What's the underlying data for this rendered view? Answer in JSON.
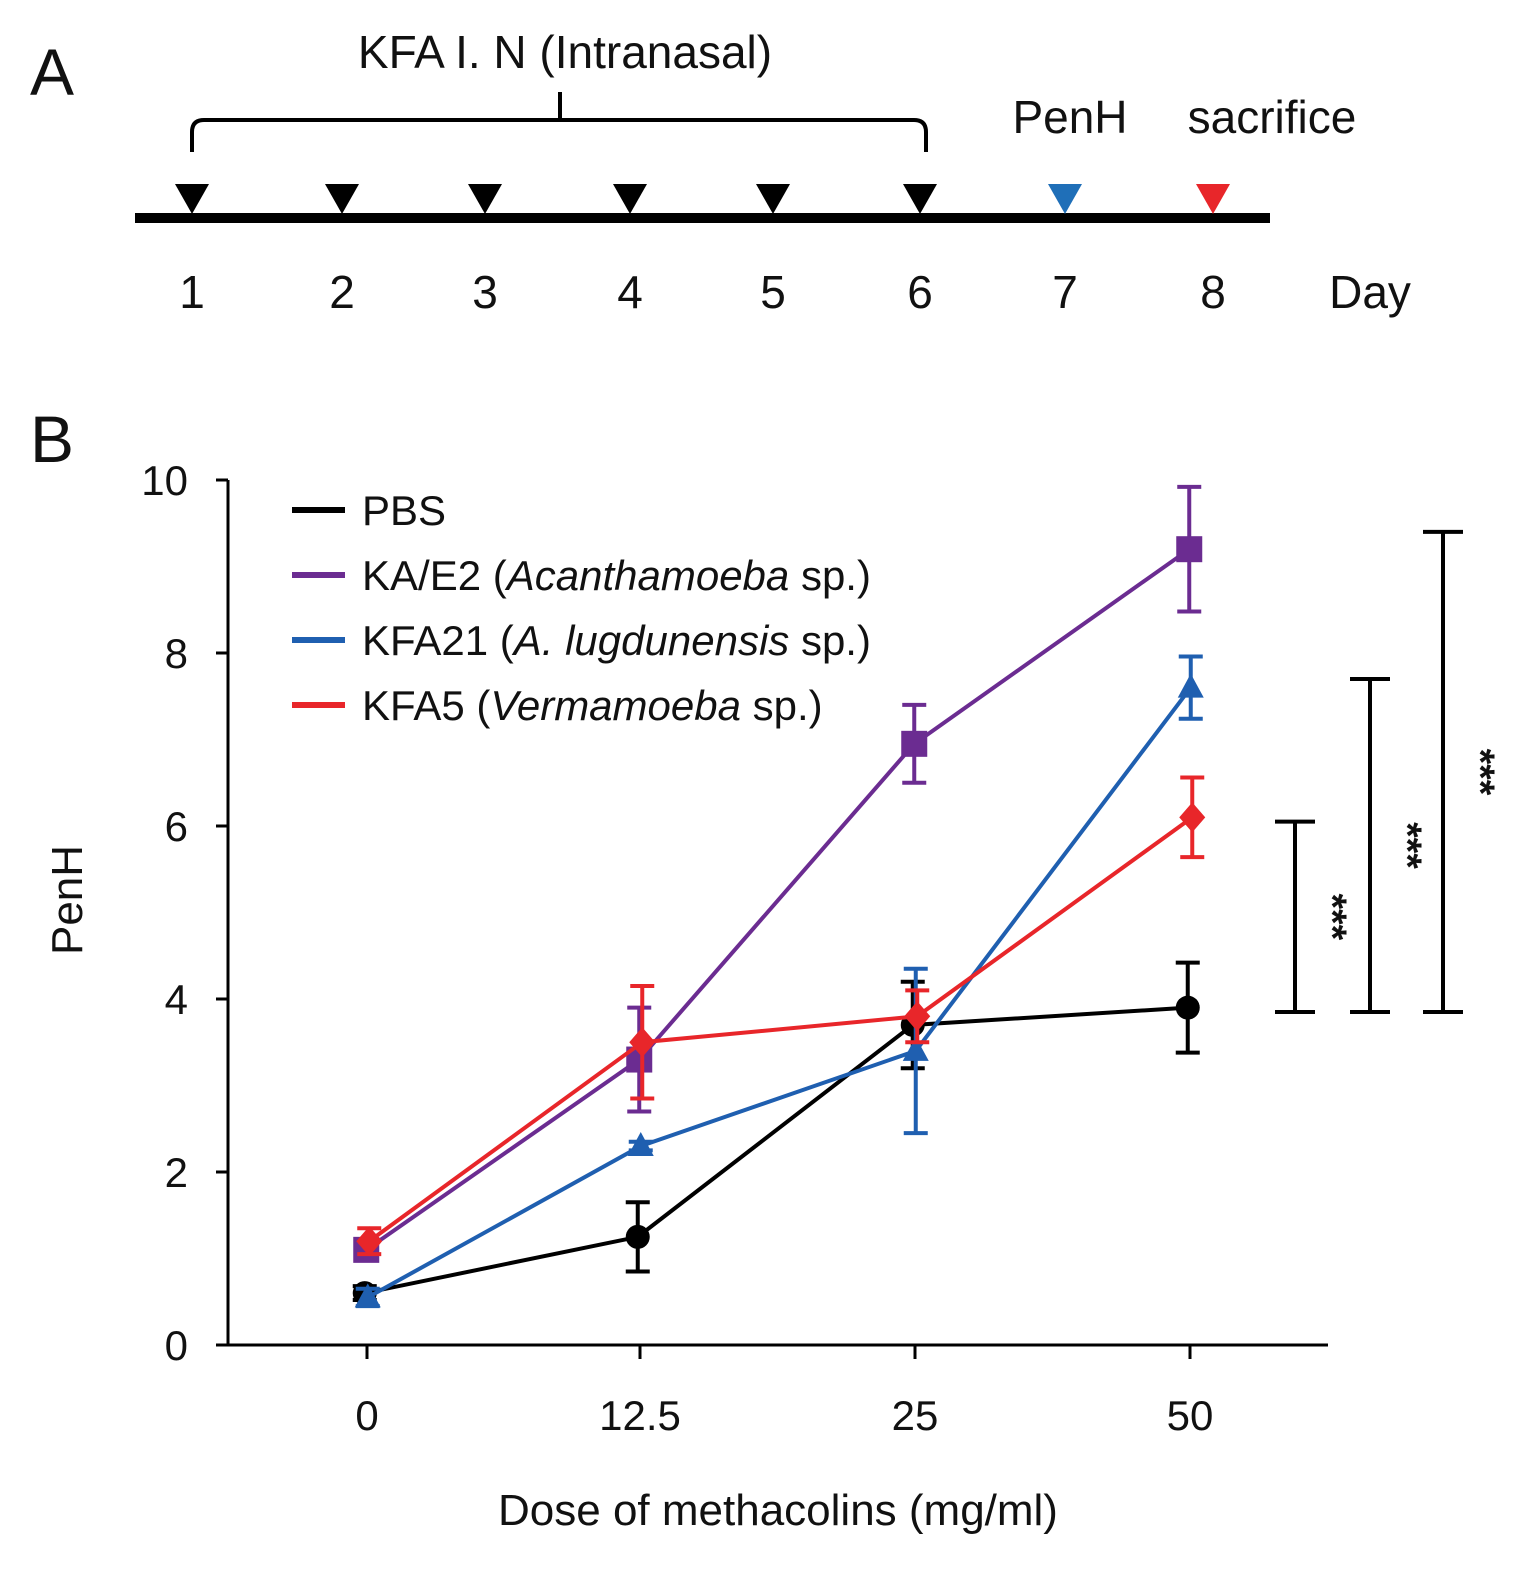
{
  "panel_a": {
    "letter": "A",
    "bracket_label": "KFA I. N (Intranasal)",
    "penh_label": "PenH",
    "sacrifice_label": "sacrifice",
    "days": [
      "1",
      "2",
      "3",
      "4",
      "5",
      "6",
      "7",
      "8"
    ],
    "day_label": "Day",
    "colors": {
      "intranasal_marker": "#000000",
      "penh_marker": "#1f6fb8",
      "sacrifice_marker": "#e8262a"
    }
  },
  "panel_b": {
    "letter": "B",
    "legend": [
      {
        "prefix": "PBS",
        "italic": "",
        "suffix": "",
        "color": "#000000"
      },
      {
        "prefix": "KA/E2 (",
        "italic": "Acanthamoeba",
        "suffix": " sp.)",
        "color": "#6b2c91"
      },
      {
        "prefix": "KFA21 (",
        "italic": "A. lugdunensis",
        "suffix": " sp.)",
        "color": "#1f5fb0"
      },
      {
        "prefix": "KFA5 (",
        "italic": "Vermamoeba",
        "suffix": " sp.)",
        "color": "#e8262a"
      }
    ],
    "significance": [
      "***",
      "***",
      "***"
    ]
  },
  "chart_data": {
    "type": "line",
    "title": "",
    "xlabel": "Dose of methacolins (mg/ml)",
    "ylabel": "PenH",
    "categories": [
      "0",
      "12.5",
      "25",
      "50"
    ],
    "ylim": [
      0,
      10
    ],
    "yticks": [
      "0",
      "2",
      "4",
      "6",
      "8",
      "10"
    ],
    "grid": false,
    "legend_position": "top-left",
    "series": [
      {
        "name": "PBS",
        "color": "#000000",
        "marker": "circle",
        "values": [
          0.6,
          1.25,
          3.7,
          3.9
        ],
        "errors": [
          0.08,
          0.4,
          0.5,
          0.52
        ]
      },
      {
        "name": "KA/E2 (Acanthamoeba sp.)",
        "color": "#6b2c91",
        "marker": "square",
        "values": [
          1.1,
          3.3,
          6.95,
          9.2
        ],
        "errors": [
          0.12,
          0.6,
          0.45,
          0.72
        ]
      },
      {
        "name": "KFA21 (A. lugdunensis sp.)",
        "color": "#1f5fb0",
        "marker": "triangle",
        "values": [
          0.55,
          2.3,
          3.4,
          7.6
        ],
        "errors": [
          0.1,
          0.05,
          0.95,
          0.36
        ]
      },
      {
        "name": "KFA5 (Vermamoeba sp.)",
        "color": "#e8262a",
        "marker": "diamond",
        "values": [
          1.2,
          3.5,
          3.8,
          6.1
        ],
        "errors": [
          0.15,
          0.65,
          0.3,
          0.46
        ]
      }
    ],
    "significance_brackets": [
      {
        "label": "***",
        "y_low": 3.85,
        "y_high": 6.05
      },
      {
        "label": "***",
        "y_low": 3.85,
        "y_high": 7.7
      },
      {
        "label": "***",
        "y_low": 3.85,
        "y_high": 9.4
      }
    ]
  }
}
